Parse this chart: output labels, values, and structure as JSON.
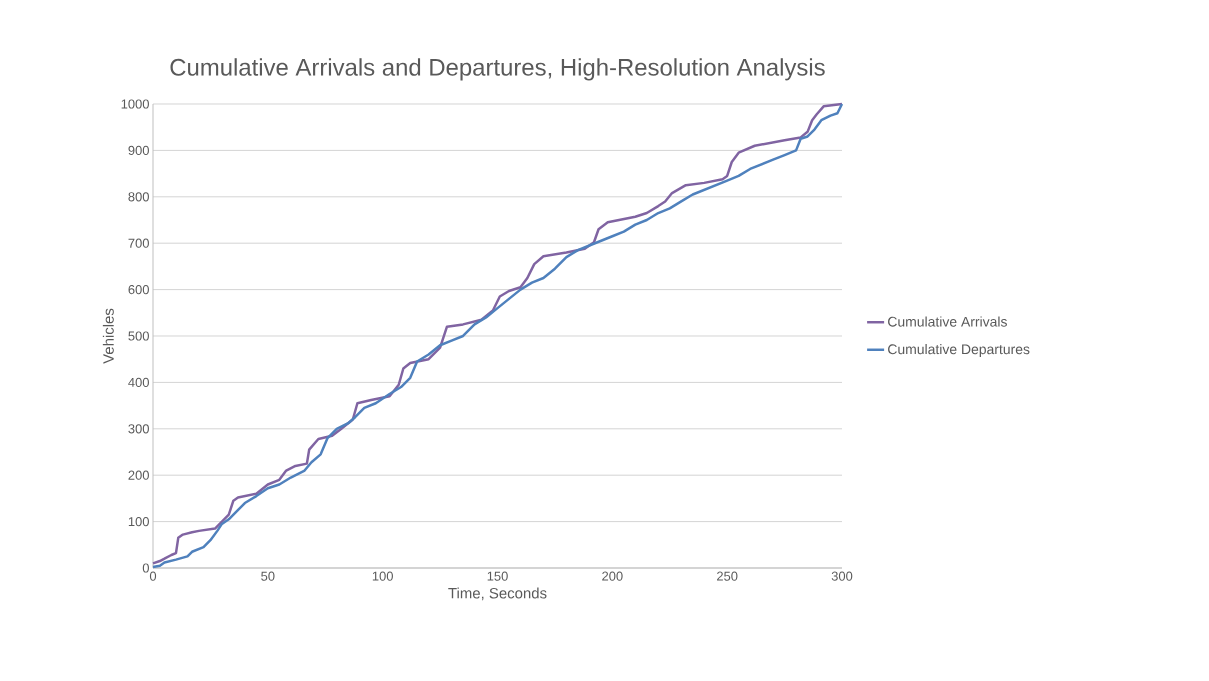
{
  "chart_data": {
    "type": "line",
    "title": "Cumulative Arrivals and Departures, High-Resolution Analysis",
    "xlabel": "Time, Seconds",
    "ylabel": "Vehicles",
    "xlim": [
      0,
      300
    ],
    "xticks": [
      0,
      50,
      100,
      150,
      200,
      250,
      300
    ],
    "ylim": [
      0,
      1000
    ],
    "yticks": [
      0,
      100,
      200,
      300,
      400,
      500,
      600,
      700,
      800,
      900,
      1000
    ],
    "grid": "y",
    "legend": "right",
    "marker": "none",
    "line_style": "solid",
    "series": [
      {
        "name": "Cumulative Arrivals",
        "color": "#8064a2",
        "x": [
          0,
          3,
          5,
          8,
          10,
          11,
          13,
          17,
          20,
          27,
          30,
          33,
          35,
          37,
          45,
          50,
          55,
          58,
          62,
          67,
          68,
          72,
          78,
          82,
          87,
          89,
          95,
          103,
          107,
          109,
          112,
          120,
          125,
          128,
          135,
          143,
          148,
          151,
          155,
          160,
          163,
          166,
          170,
          180,
          188,
          192,
          194,
          198,
          210,
          215,
          220,
          223,
          226,
          232,
          240,
          248,
          250,
          252,
          255,
          262,
          275,
          282,
          285,
          287,
          289,
          292,
          300
        ],
        "values": [
          10,
          15,
          20,
          28,
          32,
          65,
          72,
          77,
          80,
          85,
          100,
          115,
          145,
          152,
          160,
          180,
          190,
          210,
          220,
          225,
          255,
          278,
          285,
          300,
          320,
          355,
          362,
          370,
          395,
          430,
          442,
          450,
          475,
          520,
          525,
          535,
          555,
          585,
          597,
          605,
          625,
          655,
          672,
          680,
          688,
          702,
          730,
          745,
          757,
          765,
          780,
          790,
          808,
          825,
          830,
          838,
          845,
          875,
          895,
          910,
          922,
          928,
          940,
          965,
          978,
          995,
          1000
        ]
      },
      {
        "name": "Cumulative Departures",
        "color": "#4f81bd",
        "x": [
          0,
          3,
          5,
          10,
          15,
          17,
          22,
          25,
          28,
          30,
          33,
          36,
          40,
          45,
          50,
          55,
          60,
          66,
          69,
          73,
          76,
          80,
          85,
          88,
          92,
          97,
          103,
          108,
          112,
          115,
          120,
          125,
          130,
          135,
          140,
          145,
          150,
          155,
          160,
          165,
          170,
          175,
          180,
          185,
          190,
          195,
          200,
          205,
          210,
          215,
          220,
          225,
          230,
          235,
          240,
          245,
          250,
          255,
          260,
          265,
          270,
          275,
          280,
          282,
          285,
          288,
          291,
          295,
          298,
          300
        ],
        "values": [
          2,
          5,
          12,
          18,
          25,
          35,
          45,
          60,
          80,
          95,
          105,
          120,
          140,
          155,
          172,
          180,
          195,
          210,
          228,
          245,
          280,
          300,
          312,
          325,
          345,
          355,
          375,
          390,
          410,
          445,
          460,
          480,
          490,
          500,
          525,
          540,
          560,
          580,
          600,
          615,
          625,
          645,
          670,
          685,
          695,
          705,
          715,
          725,
          740,
          750,
          765,
          775,
          790,
          805,
          815,
          825,
          835,
          845,
          860,
          870,
          880,
          890,
          900,
          925,
          930,
          945,
          965,
          975,
          980,
          1000
        ]
      }
    ]
  }
}
